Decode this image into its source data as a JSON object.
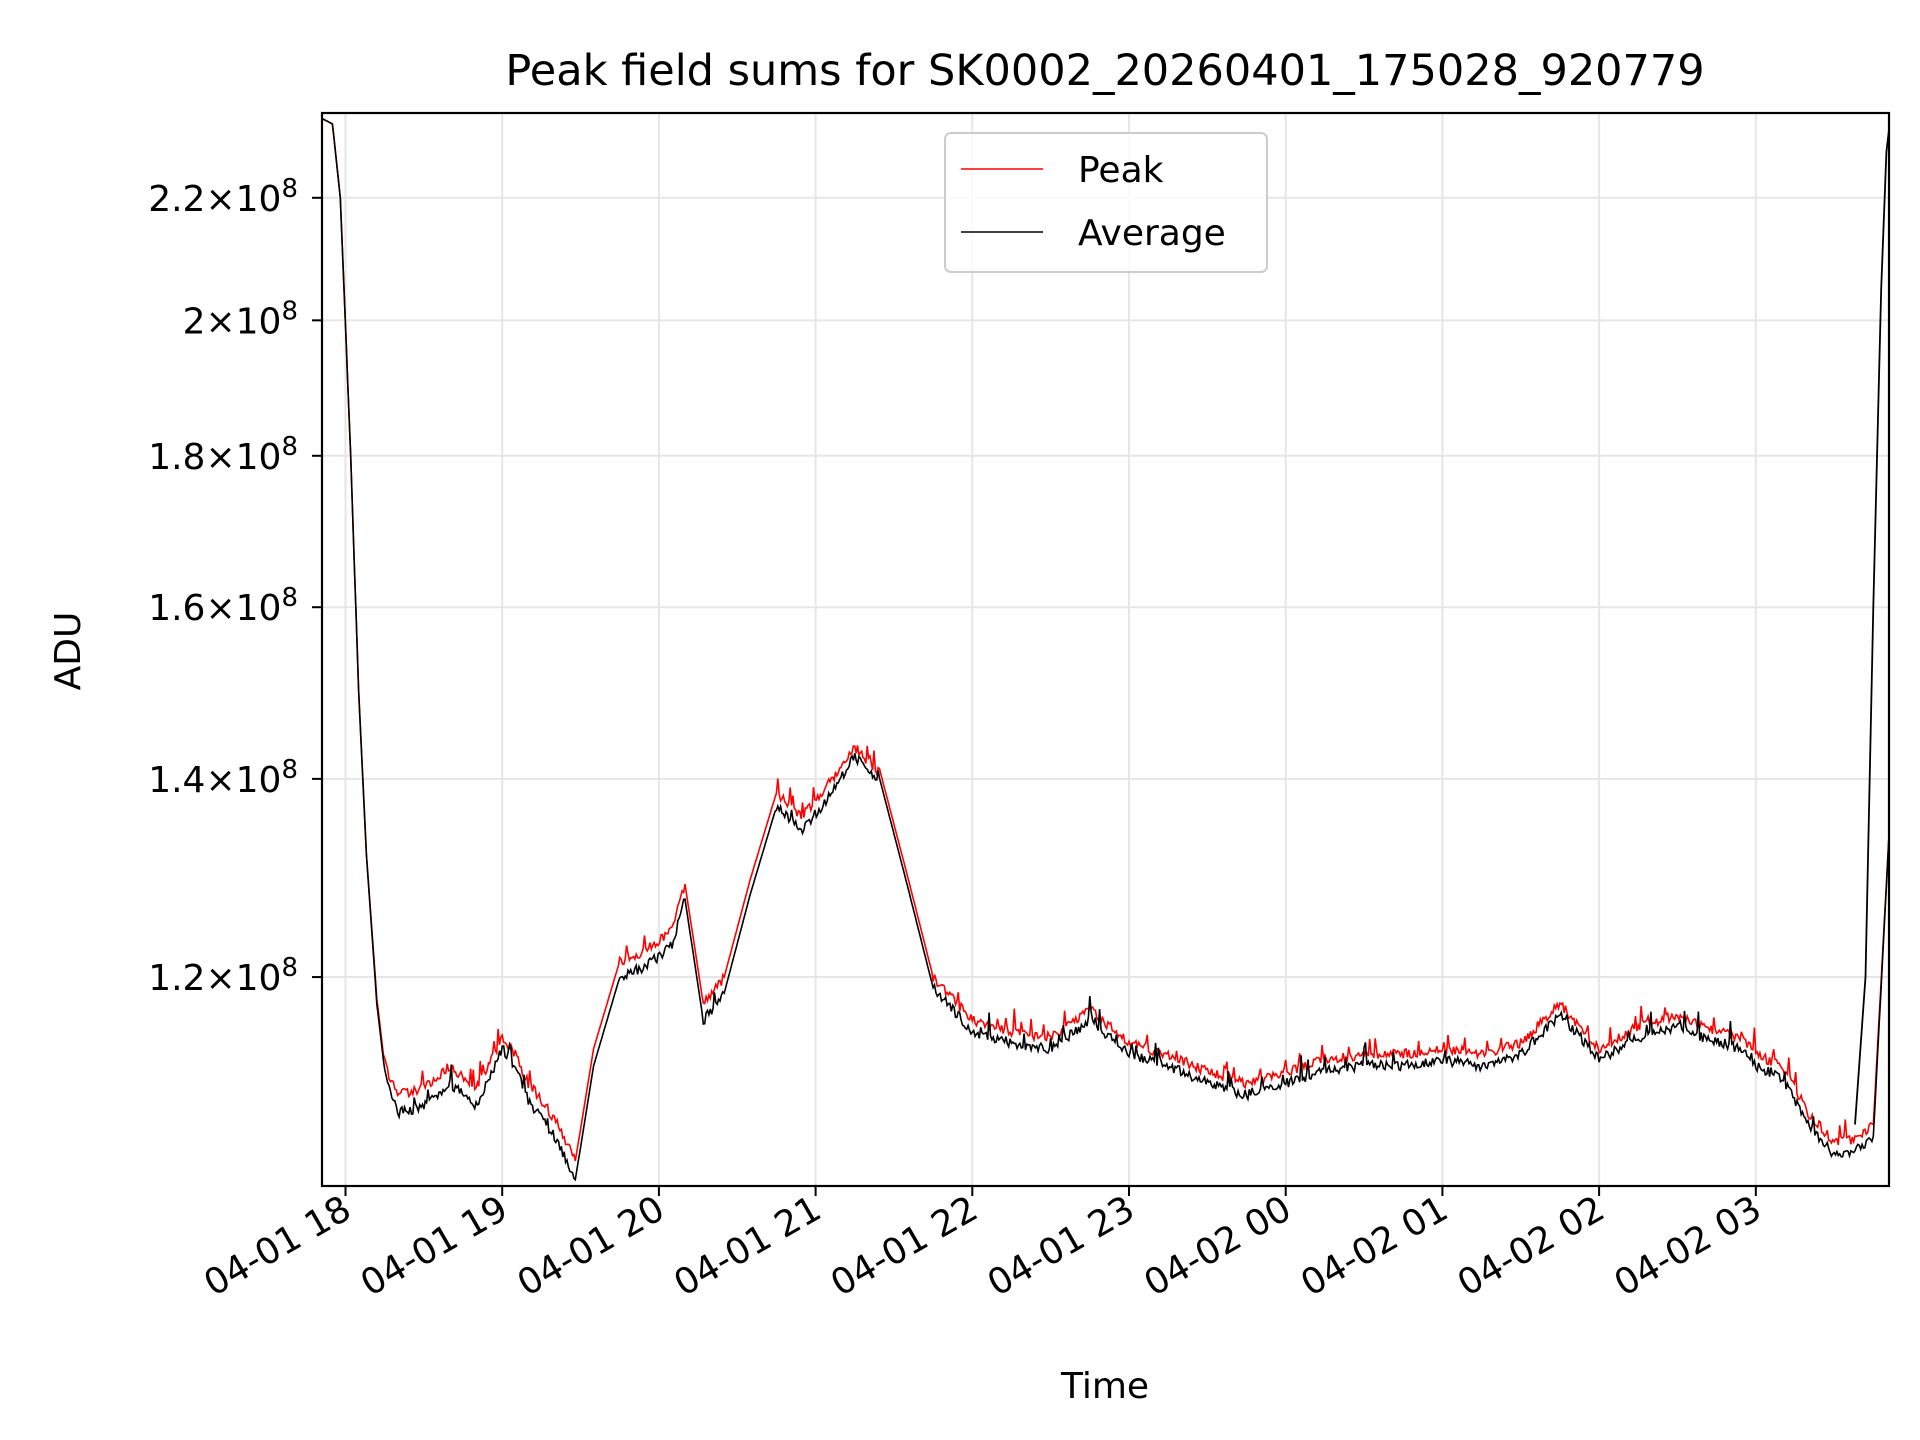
{
  "chart_data": {
    "type": "line",
    "title": "Peak field sums for SK0002_20260401_175028_920779",
    "xlabel": "Time",
    "ylabel": "ADU",
    "yscale": "log",
    "grid": true,
    "legend_position": "top-center",
    "x_range": [
      "04-01 17:51",
      "04-02 03:51"
    ],
    "ylim": [
      102000000,
      235000000
    ],
    "x_ticks": [
      "04-01 18",
      "04-01 19",
      "04-01 20",
      "04-01 21",
      "04-01 22",
      "04-01 23",
      "04-02 00",
      "04-02 01",
      "04-02 02",
      "04-02 03"
    ],
    "y_ticks": [
      {
        "value": 120000000,
        "mantissa": "1.2",
        "exp": "8"
      },
      {
        "value": 140000000,
        "mantissa": "1.4",
        "exp": "8"
      },
      {
        "value": 160000000,
        "mantissa": "1.6",
        "exp": "8"
      },
      {
        "value": 180000000,
        "mantissa": "1.8",
        "exp": "8"
      },
      {
        "value": 200000000,
        "mantissa": "2",
        "exp": "8"
      },
      {
        "value": 220000000,
        "mantissa": "2.2",
        "exp": "8"
      }
    ],
    "x": [
      "04-01 17:51",
      "04-01 17:55",
      "04-01 17:58",
      "04-01 18:02",
      "04-01 18:05",
      "04-01 18:08",
      "04-01 18:12",
      "04-01 18:15",
      "04-01 18:20",
      "04-01 18:30",
      "04-01 18:40",
      "04-01 18:50",
      "04-01 19:00",
      "04-01 19:05",
      "04-01 19:10",
      "04-01 19:20",
      "04-01 19:28",
      "04-01 19:35",
      "04-01 19:45",
      "04-01 19:55",
      "04-01 20:05",
      "04-01 20:10",
      "04-01 20:17",
      "04-01 20:25",
      "04-01 20:35",
      "04-01 20:45",
      "04-01 20:55",
      "04-01 21:05",
      "04-01 21:15",
      "04-01 21:25",
      "04-01 21:35",
      "04-01 21:45",
      "04-01 22:00",
      "04-01 22:15",
      "04-01 22:30",
      "04-01 22:45",
      "04-01 23:00",
      "04-01 23:15",
      "04-01 23:30",
      "04-01 23:45",
      "04-02 00:00",
      "04-02 00:15",
      "04-02 00:30",
      "04-02 00:45",
      "04-02 01:00",
      "04-02 01:15",
      "04-02 01:30",
      "04-02 01:45",
      "04-02 02:00",
      "04-02 02:15",
      "04-02 02:30",
      "04-02 02:45",
      "04-02 02:55",
      "04-02 03:00",
      "04-02 03:10",
      "04-02 03:20",
      "04-02 03:30",
      "04-02 03:38",
      "04-02 03:45",
      "04-02 03:51"
    ],
    "series": [
      {
        "name": "Peak",
        "color": "#ff0000",
        "values": [
          234000000,
          233000000,
          220000000,
          180000000,
          150000000,
          132000000,
          118000000,
          112000000,
          109500000,
          110000000,
          112000000,
          110000000,
          114500000,
          113000000,
          110500000,
          107500000,
          104000000,
          113500000,
          121500000,
          122500000,
          124500000,
          129000000,
          117500000,
          120000000,
          129500000,
          138500000,
          136000000,
          139500000,
          143500000,
          140500000,
          130000000,
          120000000,
          116000000,
          115000000,
          114500000,
          117000000,
          114000000,
          113000000,
          111500000,
          110500000,
          111500000,
          112500000,
          113000000,
          113000000,
          113500000,
          113000000,
          114000000,
          117500000,
          113500000,
          115500000,
          116500000,
          115000000,
          114500000,
          113000000,
          112000000,
          108000000,
          105500000,
          105800000,
          107000000,
          134000000
        ]
      },
      {
        "name": "Average",
        "color": "#000000",
        "values": [
          234000000,
          233000000,
          220000000,
          180000000,
          150000000,
          132000000,
          117500000,
          111500000,
          108000000,
          108500000,
          110500000,
          108500000,
          113500000,
          112000000,
          109000000,
          106000000,
          102500000,
          112000000,
          120000000,
          121000000,
          123000000,
          127500000,
          116000000,
          118500000,
          128000000,
          137000000,
          134500000,
          138000000,
          142500000,
          139500000,
          129000000,
          119000000,
          115000000,
          114000000,
          113500000,
          116000000,
          113000000,
          112000000,
          110500000,
          109500000,
          110500000,
          111500000,
          112000000,
          112000000,
          112500000,
          112000000,
          113000000,
          116500000,
          112500000,
          114500000,
          115500000,
          114000000,
          113500000,
          112000000,
          111000000,
          107000000,
          104500000,
          104800000,
          106000000,
          134000000
        ]
      }
    ]
  },
  "overlay": {
    "tail_x": [
      "04-02 03:38",
      "04-02 03:42",
      "04-02 03:45",
      "04-02 03:48",
      "04-02 03:50",
      "04-02 03:51"
    ],
    "tail_values": [
      107000000,
      120000000,
      160000000,
      205000000,
      228000000,
      232000000
    ]
  }
}
